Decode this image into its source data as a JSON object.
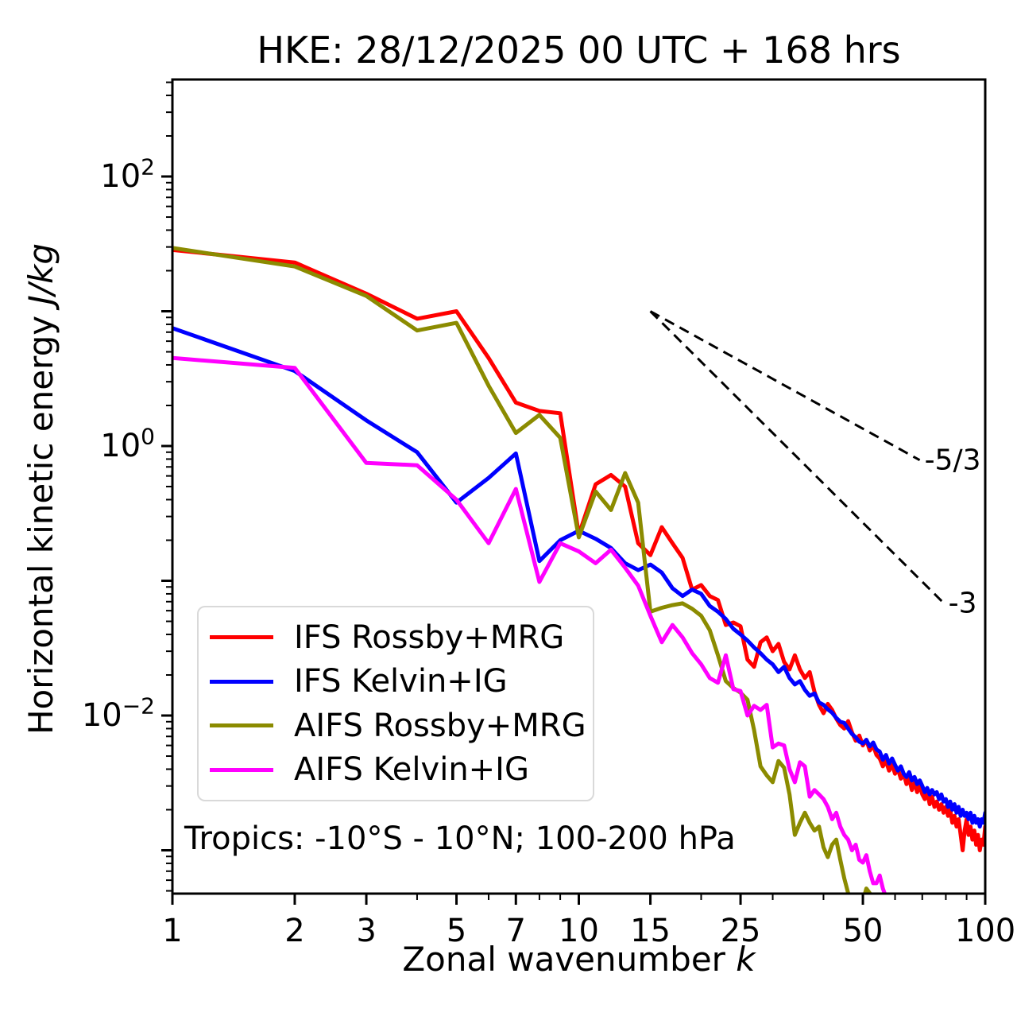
{
  "title": "HKE: 28/12/2025 00 UTC + 168 hrs",
  "annotation": "Tropics: -10°S - 10°N; 100-200 hPa",
  "axes": {
    "xlabel_text": "Zonal wavenumber",
    "xlabel_math": "k",
    "ylabel_text": "Horizontal kinetic energy",
    "ylabel_math": "J/kg"
  },
  "chart_data": {
    "type": "line",
    "title": "HKE: 28/12/2025 00 UTC + 168 hrs",
    "xlabel": "Zonal wavenumber k",
    "ylabel": "Horizontal kinetic energy J/kg",
    "x_scale": "log",
    "y_scale": "log",
    "xlim": [
      1,
      100
    ],
    "ylim": [
      0.000477,
      524.6
    ],
    "x_major_ticks": [
      1,
      2,
      3,
      5,
      7,
      10,
      15,
      25,
      50,
      100
    ],
    "x_minor_ticks": [
      4,
      6,
      8,
      9,
      20,
      30,
      40,
      60,
      70,
      80,
      90
    ],
    "y_major_tick_exponents": [
      2,
      1,
      0,
      -1,
      -2,
      -3
    ],
    "y_labeled_exponents": [
      2,
      0,
      -2
    ],
    "grid": false,
    "legend_position": "lower-left",
    "reference_lines": [
      {
        "label": "-5/3",
        "k": [
          15,
          69
        ],
        "v": [
          10,
          0.786
        ]
      },
      {
        "label": "-3",
        "k": [
          15,
          79
        ],
        "v": [
          10,
          0.0684
        ]
      }
    ],
    "series": [
      {
        "name": "IFS Rossby+MRG",
        "color": "#ff0000",
        "k_start": 1,
        "values": [
          28.5,
          23.0,
          13.5,
          8.8,
          10.0,
          4.5,
          2.1,
          1.82,
          1.75,
          0.22,
          0.52,
          0.61,
          0.5,
          0.19,
          0.155,
          0.25,
          0.19,
          0.148,
          0.086,
          0.093,
          0.077,
          0.072,
          0.047,
          0.049,
          0.046,
          0.026,
          0.023,
          0.035,
          0.038,
          0.03,
          0.034,
          0.025,
          0.022,
          0.028,
          0.022,
          0.019,
          0.021,
          0.015,
          0.012,
          0.0104,
          0.0122,
          0.011,
          0.0095,
          0.0085,
          0.008,
          0.0091,
          0.0075,
          0.0065,
          0.0071,
          0.006,
          0.0066,
          0.0055,
          0.006,
          0.0051,
          0.0048,
          0.0042,
          0.0046,
          0.0039,
          0.0043,
          0.0037,
          0.004,
          0.0034,
          0.0037,
          0.0031,
          0.0034,
          0.0028,
          0.0032,
          0.0027,
          0.003,
          0.0026,
          0.0024,
          0.0027,
          0.0022,
          0.0025,
          0.0021,
          0.0023,
          0.002,
          0.0022,
          0.0019,
          0.0021,
          0.0018,
          0.002,
          0.0016,
          0.0018,
          0.0015,
          0.0017,
          0.0013,
          0.001,
          0.0014,
          0.0017,
          0.0013,
          0.0015,
          0.0012,
          0.0014,
          0.0011,
          0.0013,
          0.001,
          0.0012,
          0.0011,
          0.0015
        ]
      },
      {
        "name": "IFS Kelvin+IG",
        "color": "#0000ff",
        "k_start": 1,
        "values": [
          7.5,
          3.6,
          1.55,
          0.9,
          0.38,
          0.58,
          0.88,
          0.14,
          0.2,
          0.235,
          0.205,
          0.175,
          0.135,
          0.12,
          0.132,
          0.115,
          0.088,
          0.077,
          0.086,
          0.08,
          0.065,
          0.059,
          0.052,
          0.044,
          0.04,
          0.036,
          0.032,
          0.029,
          0.026,
          0.024,
          0.021,
          0.023,
          0.019,
          0.017,
          0.018,
          0.0155,
          0.014,
          0.0146,
          0.0125,
          0.012,
          0.0111,
          0.0105,
          0.0096,
          0.009,
          0.0088,
          0.008,
          0.0073,
          0.0069,
          0.0064,
          0.0062,
          0.0066,
          0.0059,
          0.0063,
          0.0056,
          0.0054,
          0.0047,
          0.0051,
          0.0044,
          0.0048,
          0.0043,
          0.0039,
          0.0042,
          0.0037,
          0.0035,
          0.0038,
          0.0033,
          0.0035,
          0.0031,
          0.0033,
          0.003,
          0.0027,
          0.0029,
          0.0026,
          0.0028,
          0.0026,
          0.0027,
          0.0024,
          0.0026,
          0.0023,
          0.0024,
          0.0021,
          0.0023,
          0.002,
          0.0022,
          0.0019,
          0.0021,
          0.0018,
          0.002,
          0.0018,
          0.0019,
          0.0017,
          0.0019,
          0.0016,
          0.0018,
          0.0016,
          0.0017,
          0.0015,
          0.0017,
          0.0016,
          0.0019
        ]
      },
      {
        "name": "AIFS Rossby+MRG",
        "color": "#8b8b00",
        "k_start": 1,
        "values": [
          29.5,
          21.5,
          13.0,
          7.2,
          8.2,
          2.8,
          1.25,
          1.7,
          1.15,
          0.21,
          0.46,
          0.335,
          0.63,
          0.38,
          0.059,
          0.063,
          0.066,
          0.068,
          0.062,
          0.055,
          0.043,
          0.028,
          0.018,
          0.016,
          0.0148,
          0.0131,
          0.0078,
          0.0042,
          0.0036,
          0.0032,
          0.0046,
          0.0041,
          0.0026,
          0.0013,
          0.0016,
          0.0019,
          0.0016,
          0.0014,
          0.0015,
          0.00105,
          0.00089,
          0.0011,
          0.0012,
          0.00085,
          0.00062,
          0.00048,
          0.00036,
          0.00032,
          0.00038,
          0.00042,
          0.00052,
          0.00048,
          0.00033
        ]
      },
      {
        "name": "AIFS Kelvin+IG",
        "color": "#ff00ff",
        "k_start": 1,
        "values": [
          4.5,
          3.8,
          0.75,
          0.72,
          0.4,
          0.19,
          0.48,
          0.098,
          0.19,
          0.165,
          0.135,
          0.17,
          0.125,
          0.092,
          0.055,
          0.035,
          0.047,
          0.038,
          0.029,
          0.024,
          0.019,
          0.0175,
          0.028,
          0.0157,
          0.0152,
          0.01,
          0.0118,
          0.011,
          0.012,
          0.0058,
          0.0062,
          0.006,
          0.004,
          0.0032,
          0.0045,
          0.0042,
          0.0025,
          0.0028,
          0.0026,
          0.0024,
          0.0021,
          0.0017,
          0.0019,
          0.0015,
          0.0013,
          0.0012,
          0.001,
          0.0011,
          0.00085,
          0.00081,
          0.00092,
          0.0007,
          0.00057,
          0.00057,
          0.00065,
          0.00052,
          0.00045,
          0.00038
        ]
      }
    ]
  }
}
